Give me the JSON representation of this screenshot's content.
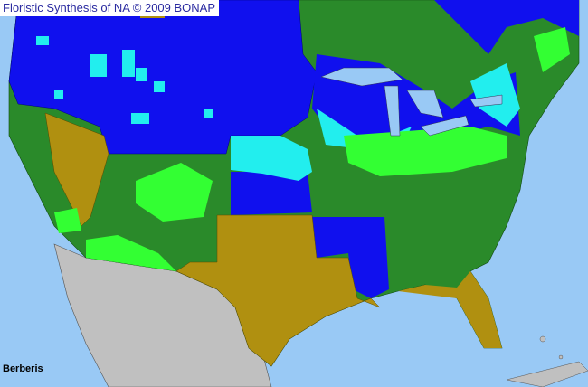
{
  "header": {
    "title": "Floristic Synthesis of NA © 2009 BONAP"
  },
  "map": {
    "taxon": "Berberis",
    "colors": {
      "ocean": "#99c9f5",
      "mexico": "#c0c0c0",
      "present_native": "#2a8a2a",
      "present_county": "#33ff33",
      "present_state_blue": "#1010ee",
      "present_county_cyan": "#22eeee",
      "absent_olive": "#b09010",
      "lakes": "#99c9f5"
    }
  }
}
